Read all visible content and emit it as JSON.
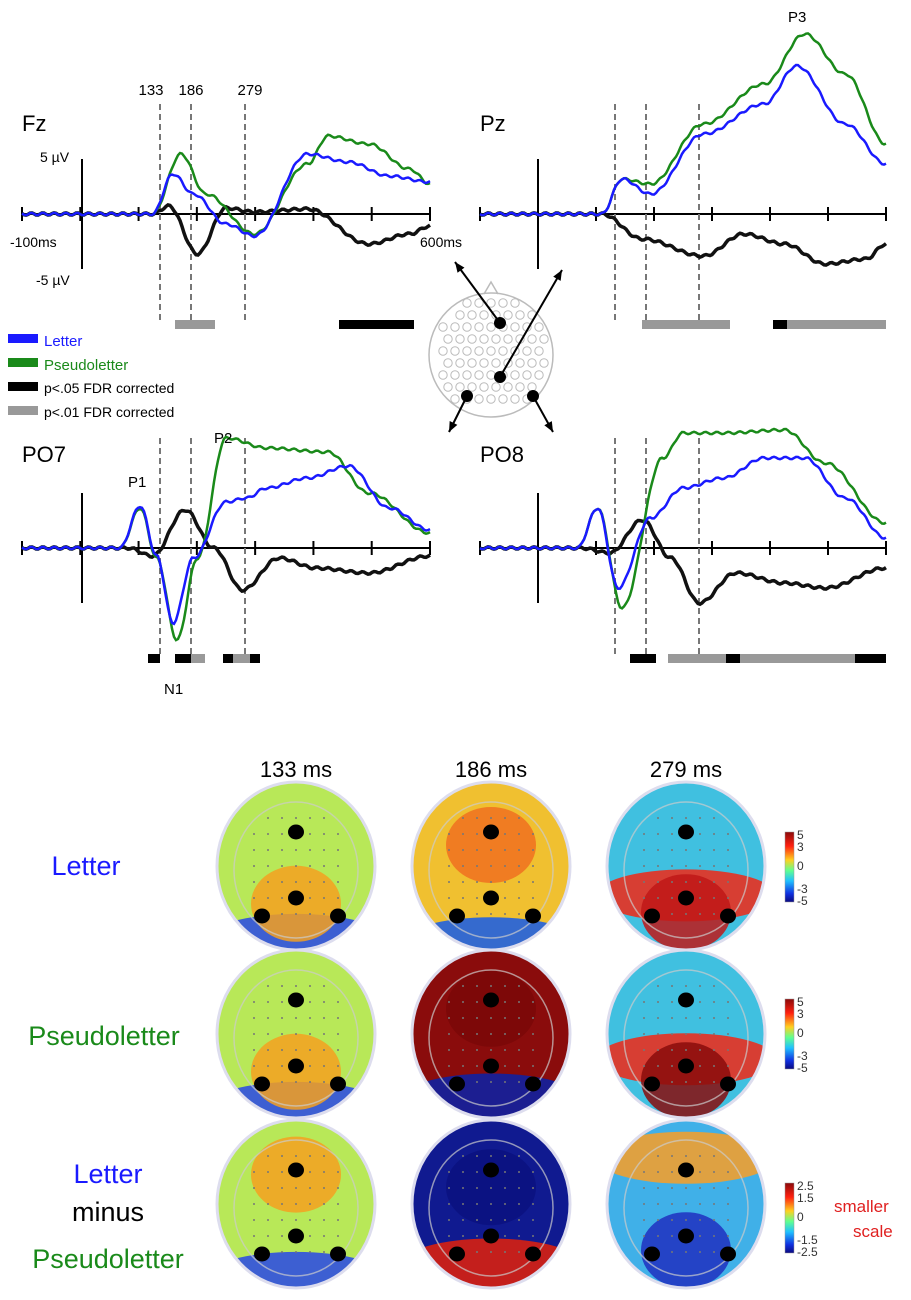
{
  "erp": {
    "panels": [
      {
        "name": "Fz"
      },
      {
        "name": "Pz"
      },
      {
        "name": "PO7"
      },
      {
        "name": "PO8"
      }
    ],
    "timepoints": [
      "133",
      "186",
      "279"
    ],
    "scale": {
      "pos": "5 µV",
      "neg": "-5 µV",
      "t_start": "-100ms",
      "t_end": "600ms"
    },
    "peaks": {
      "p1": "P1",
      "n1": "N1",
      "p2": "P2",
      "p3": "P3"
    },
    "legend": [
      {
        "label": "Letter",
        "color": "#1a1aff"
      },
      {
        "label": "Pseudoletter",
        "color": "#1a8a1a"
      },
      {
        "label": "p<.05 FDR corrected",
        "color": "#000000"
      },
      {
        "label": "p<.01 FDR corrected",
        "color": "#999999"
      }
    ]
  },
  "topo": {
    "columns": [
      "133 ms",
      "186 ms",
      "279 ms"
    ],
    "rows": [
      {
        "label": "Letter",
        "color": "#1a1aff"
      },
      {
        "label": "Pseudoletter",
        "color": "#1a8a1a"
      },
      {
        "label_lines": [
          "Letter",
          "minus",
          "Pseudoletter"
        ],
        "colors": [
          "#1a1aff",
          "#000000",
          "#1a8a1a"
        ]
      }
    ],
    "colorbar_standard": [
      "5",
      "3",
      "0",
      "-3",
      "-5"
    ],
    "colorbar_small": [
      "2.5",
      "1.5",
      "0",
      "-1.5",
      "-2.5"
    ],
    "note": [
      "smaller",
      "scale"
    ],
    "note_color": "#e02020"
  }
}
